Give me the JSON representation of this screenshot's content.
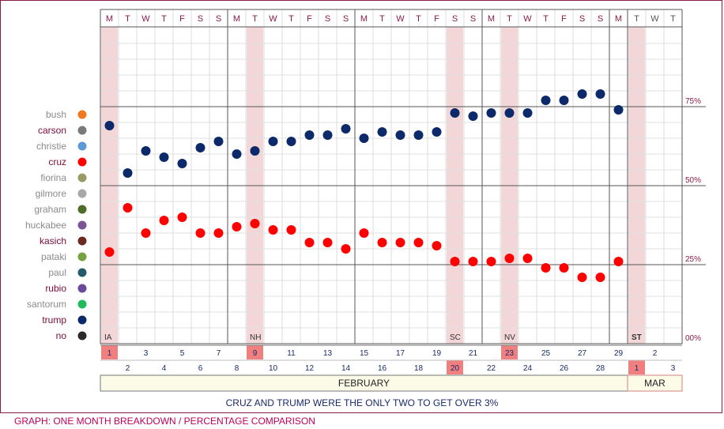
{
  "chart_data": {
    "type": "scatter",
    "day_letters": [
      "M",
      "T",
      "W",
      "T",
      "F",
      "S",
      "S",
      "M",
      "T",
      "W",
      "T",
      "F",
      "S",
      "S",
      "M",
      "T",
      "W",
      "T",
      "F",
      "S",
      "S",
      "M",
      "T",
      "W",
      "T",
      "F",
      "S",
      "S",
      "M",
      "T",
      "W",
      "T"
    ],
    "dates": [
      "1",
      "2",
      "3",
      "4",
      "5",
      "6",
      "7",
      "8",
      "9",
      "10",
      "11",
      "12",
      "13",
      "14",
      "15",
      "16",
      "17",
      "18",
      "19",
      "20",
      "21",
      "22",
      "23",
      "24",
      "25",
      "26",
      "27",
      "28",
      "29",
      "1",
      "2",
      "3"
    ],
    "months": [
      {
        "label": "FEBRUARY"
      },
      {
        "label": "MAR"
      }
    ],
    "events": [
      {
        "day_index": 0,
        "label": "IA"
      },
      {
        "day_index": 8,
        "label": "NH"
      },
      {
        "day_index": 19,
        "label": "SC"
      },
      {
        "day_index": 22,
        "label": "NV"
      },
      {
        "day_index": 29,
        "label": "ST"
      }
    ],
    "ylim": [
      0,
      100
    ],
    "yticks": [
      {
        "value": 75,
        "label": "75%"
      },
      {
        "value": 50,
        "label": "50%"
      },
      {
        "value": 25,
        "label": "25%"
      },
      {
        "value": 0,
        "label": "00%"
      }
    ],
    "legend": [
      {
        "name": "bush",
        "color": "#f07820",
        "active": false
      },
      {
        "name": "carson",
        "color": "#7a7a7a",
        "active": true
      },
      {
        "name": "christie",
        "color": "#5b9bd5",
        "active": false
      },
      {
        "name": "cruz",
        "color": "#ff0000",
        "active": true
      },
      {
        "name": "fiorina",
        "color": "#9a9a66",
        "active": false
      },
      {
        "name": "gilmore",
        "color": "#a8a8a8",
        "active": false
      },
      {
        "name": "graham",
        "color": "#4e6b28",
        "active": false
      },
      {
        "name": "huckabee",
        "color": "#7a5595",
        "active": false
      },
      {
        "name": "kasich",
        "color": "#6a2a22",
        "active": true
      },
      {
        "name": "pataki",
        "color": "#77a040",
        "active": false
      },
      {
        "name": "paul",
        "color": "#245a6a",
        "active": false
      },
      {
        "name": "rubio",
        "color": "#6a4a9a",
        "active": true
      },
      {
        "name": "santorum",
        "color": "#1fba5a",
        "active": false
      },
      {
        "name": "trump",
        "color": "#0c2a6a",
        "active": true
      },
      {
        "name": "no",
        "color": "#2a2a2a",
        "active": true
      }
    ],
    "series": [
      {
        "name": "trump",
        "color": "#0c2a6a",
        "values": [
          69,
          54,
          61,
          59,
          57,
          62,
          64,
          60,
          61,
          64,
          64,
          66,
          66,
          68,
          65,
          67,
          66,
          66,
          67,
          73,
          72,
          73,
          73,
          73,
          77,
          77,
          79,
          79,
          74,
          null,
          null,
          null
        ]
      },
      {
        "name": "cruz",
        "color": "#ff0000",
        "values": [
          29,
          43,
          35,
          39,
          40,
          35,
          35,
          37,
          38,
          36,
          36,
          32,
          32,
          30,
          35,
          32,
          32,
          32,
          31,
          26,
          26,
          26,
          27,
          27,
          24,
          24,
          21,
          21,
          26,
          null,
          null,
          null
        ]
      }
    ],
    "caption": "CRUZ AND TRUMP WERE THE ONLY TWO TO GET OVER 3%",
    "footer": "GRAPH: ONE MONTH BREAKDOWN / PERCENTAGE COMPARISON"
  }
}
